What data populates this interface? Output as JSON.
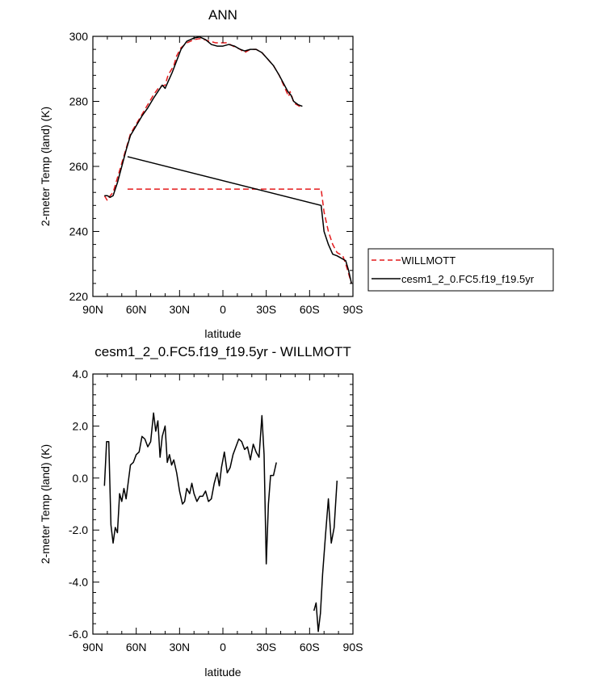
{
  "chart_data": [
    {
      "type": "line",
      "title": "ANN",
      "xlabel": "latitude",
      "ylabel": "2-meter Temp (land) (K)",
      "xlim": [
        90,
        -90
      ],
      "ylim": [
        220,
        300
      ],
      "x_tick_labels": [
        "90N",
        "60N",
        "30N",
        "0",
        "30S",
        "60S",
        "90S"
      ],
      "y_tick_labels": [
        "220",
        "240",
        "260",
        "280",
        "300"
      ],
      "legend_position": "right",
      "series": [
        {
          "name": "WILLMOTT",
          "color": "#e41a1c",
          "dash": "dashed",
          "segments": [
            [
              [
                82,
                251
              ],
              [
                80,
                249.5
              ],
              [
                78,
                251
              ],
              [
                76,
                252
              ],
              [
                72,
                258
              ],
              [
                68,
                264
              ],
              [
                64,
                270
              ],
              [
                60,
                273
              ],
              [
                56,
                276
              ],
              [
                52,
                279
              ],
              [
                48,
                282
              ],
              [
                44,
                284.5
              ],
              [
                40,
                285
              ],
              [
                38,
                288
              ],
              [
                34,
                291
              ],
              [
                32,
                294
              ],
              [
                29,
                296.5
              ],
              [
                25,
                298
              ],
              [
                20,
                299
              ],
              [
                16,
                299.3
              ],
              [
                13,
                299
              ],
              [
                9,
                298.5
              ],
              [
                5,
                298
              ],
              [
                1,
                298
              ],
              [
                -3,
                298
              ],
              [
                -7,
                297
              ],
              [
                -12,
                296
              ],
              [
                -15,
                295
              ],
              [
                -19,
                296
              ],
              [
                -23,
                296
              ],
              [
                -27,
                295
              ],
              [
                -31,
                293
              ],
              [
                -35,
                291
              ],
              [
                -39,
                288
              ],
              [
                -42,
                285
              ],
              [
                -44,
                283
              ],
              [
                -45.5,
                281.5
              ],
              [
                -46.5,
                283
              ],
              [
                -47.5,
                282
              ],
              [
                -49,
                279.5
              ],
              [
                -51,
                279
              ],
              [
                -53,
                278.5
              ],
              [
                -55,
                278
              ]
            ],
            [
              [
                66,
                253
              ],
              [
                -68,
                253
              ],
              [
                -70,
                246
              ],
              [
                -73,
                240
              ],
              [
                -76,
                236
              ],
              [
                -79,
                233.5
              ],
              [
                -81,
                233
              ],
              [
                -83,
                232.5
              ],
              [
                -85,
                230
              ],
              [
                -87,
                227
              ],
              [
                -89,
                224
              ]
            ]
          ]
        },
        {
          "name": "cesm1_2_0.FC5.f19_f19.5yr",
          "color": "#000000",
          "dash": "solid",
          "segments": [
            [
              [
                82,
                251
              ],
              [
                80,
                251
              ],
              [
                78,
                250.5
              ],
              [
                76,
                251
              ],
              [
                73,
                255
              ],
              [
                70,
                260
              ],
              [
                67,
                265
              ],
              [
                64,
                269.5
              ],
              [
                60,
                272.5
              ],
              [
                56,
                275.5
              ],
              [
                52,
                278
              ],
              [
                48,
                281
              ],
              [
                45,
                283
              ],
              [
                42,
                285
              ],
              [
                40,
                284
              ],
              [
                38,
                286
              ],
              [
                35,
                289
              ],
              [
                32,
                292.5
              ],
              [
                29,
                296
              ],
              [
                25,
                298.5
              ],
              [
                20,
                299.5
              ],
              [
                16,
                299.8
              ],
              [
                12,
                299
              ],
              [
                8,
                297.5
              ],
              [
                4,
                297
              ],
              [
                0,
                297
              ],
              [
                -4,
                297.5
              ],
              [
                -8,
                297
              ],
              [
                -12,
                296
              ],
              [
                -15,
                295.5
              ],
              [
                -19,
                296
              ],
              [
                -23,
                296
              ],
              [
                -27,
                295
              ],
              [
                -31,
                293
              ],
              [
                -35,
                291
              ],
              [
                -39,
                288
              ],
              [
                -42,
                285.5
              ],
              [
                -45,
                283
              ],
              [
                -47,
                282
              ],
              [
                -49,
                280
              ],
              [
                -52,
                279
              ],
              [
                -55,
                278.5
              ]
            ],
            [
              [
                66,
                263
              ],
              [
                -68,
                248
              ],
              [
                -70,
                240
              ],
              [
                -73,
                236
              ],
              [
                -76,
                233
              ],
              [
                -79,
                232.5
              ],
              [
                -81,
                232
              ],
              [
                -85,
                231
              ],
              [
                -87,
                228
              ],
              [
                -89,
                224
              ]
            ]
          ]
        }
      ]
    },
    {
      "type": "line",
      "title": "cesm1_2_0.FC5.f19_f19.5yr - WILLMOTT",
      "xlabel": "latitude",
      "ylabel": "2-meter Temp (land) (K)",
      "xlim": [
        90,
        -90
      ],
      "ylim": [
        -6,
        4
      ],
      "x_tick_labels": [
        "90N",
        "60N",
        "30N",
        "0",
        "30S",
        "60S",
        "90S"
      ],
      "y_tick_labels": [
        "-6.0",
        "-4.0",
        "-2.0",
        "0.0",
        "2.0",
        "4.0"
      ],
      "series": [
        {
          "color": "#000000",
          "dash": "solid",
          "segments": [
            [
              [
                82,
                -0.3
              ],
              [
                80.5,
                1.4
              ],
              [
                79,
                1.4
              ],
              [
                77.5,
                -1.8
              ],
              [
                76,
                -2.5
              ],
              [
                74.5,
                -1.9
              ],
              [
                73,
                -2.1
              ],
              [
                71.5,
                -0.6
              ],
              [
                70,
                -0.9
              ],
              [
                68.5,
                -0.4
              ],
              [
                67,
                -0.8
              ],
              [
                64,
                0.5
              ],
              [
                62,
                0.6
              ],
              [
                60,
                0.9
              ],
              [
                58,
                1.0
              ],
              [
                56,
                1.6
              ],
              [
                54,
                1.5
              ],
              [
                52,
                1.2
              ],
              [
                50,
                1.4
              ],
              [
                48,
                2.5
              ],
              [
                46.5,
                1.8
              ],
              [
                45,
                2.2
              ],
              [
                43.5,
                0.8
              ],
              [
                42,
                1.6
              ],
              [
                40,
                2.0
              ],
              [
                38.5,
                0.6
              ],
              [
                37,
                0.9
              ],
              [
                35.5,
                0.5
              ],
              [
                34,
                0.7
              ],
              [
                32,
                0.2
              ],
              [
                30,
                -0.5
              ],
              [
                28,
                -1.0
              ],
              [
                26.5,
                -0.9
              ],
              [
                25,
                -0.4
              ],
              [
                23,
                -0.6
              ],
              [
                21.5,
                -0.2
              ],
              [
                20,
                -0.6
              ],
              [
                18,
                -0.9
              ],
              [
                16,
                -0.7
              ],
              [
                14,
                -0.7
              ],
              [
                12,
                -0.5
              ],
              [
                10,
                -0.9
              ],
              [
                8,
                -0.8
              ],
              [
                6,
                -0.2
              ],
              [
                4,
                0.2
              ],
              [
                2.5,
                -0.3
              ],
              [
                1,
                0.4
              ],
              [
                -1,
                1.0
              ],
              [
                -3,
                0.2
              ],
              [
                -5,
                0.4
              ],
              [
                -7,
                0.9
              ],
              [
                -9,
                1.2
              ],
              [
                -11,
                1.5
              ],
              [
                -13,
                1.4
              ],
              [
                -15,
                1.1
              ],
              [
                -17,
                1.2
              ],
              [
                -19,
                0.7
              ],
              [
                -21,
                1.3
              ],
              [
                -23,
                1.0
              ],
              [
                -25,
                0.8
              ],
              [
                -27,
                2.4
              ],
              [
                -28.5,
                0.9
              ],
              [
                -30,
                -3.3
              ],
              [
                -31.5,
                -1.0
              ],
              [
                -33,
                0.1
              ],
              [
                -35,
                0.1
              ],
              [
                -37,
                0.6
              ]
            ],
            [
              [
                -63,
                -5.1
              ],
              [
                -64.5,
                -4.8
              ],
              [
                -66,
                -5.9
              ],
              [
                -67.5,
                -5.2
              ],
              [
                -69,
                -3.7
              ],
              [
                -71,
                -2.2
              ],
              [
                -73,
                -0.8
              ],
              [
                -75,
                -2.5
              ],
              [
                -77,
                -1.9
              ],
              [
                -79,
                -0.1
              ]
            ]
          ]
        }
      ]
    }
  ]
}
